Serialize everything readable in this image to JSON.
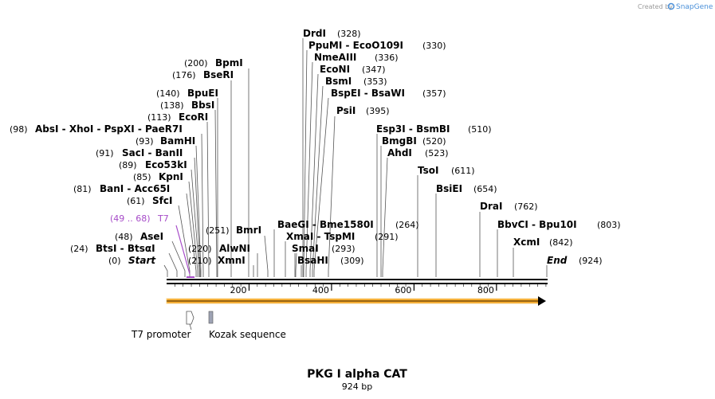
{
  "credit": {
    "prefix": "Created by",
    "brand": "SnapGene"
  },
  "sequence": {
    "name": "PKG I alpha CAT",
    "length_label": "924 bp",
    "length": 924
  },
  "axis": {
    "ticks": [
      200,
      400,
      600,
      800
    ]
  },
  "sites": [
    {
      "pos": "(328)",
      "label": "DrdI",
      "bp": 328
    },
    {
      "pos": "(330)",
      "label": "PpuMI  - EcoO109I",
      "bp": 330
    },
    {
      "pos": "(336)",
      "label": "NmeAIII",
      "bp": 336
    },
    {
      "pos": "(347)",
      "label": "EcoNI",
      "bp": 347
    },
    {
      "pos": "(353)",
      "label": "BsmI",
      "bp": 353
    },
    {
      "pos": "(357)",
      "label": "BspEI  - BsaWI",
      "bp": 357
    },
    {
      "pos": "(395)",
      "label": "PsiI",
      "bp": 395
    },
    {
      "pos": "(200)",
      "label": "BpmI",
      "bp": 200
    },
    {
      "pos": "(176)",
      "label": "BseRI",
      "bp": 176
    },
    {
      "pos": "(140)",
      "label": "BpuEI",
      "bp": 140
    },
    {
      "pos": "(138)",
      "label": "BbsI",
      "bp": 138
    },
    {
      "pos": "(113)",
      "label": "EcoRI",
      "bp": 113
    },
    {
      "pos": "(98)",
      "label": "AbsI  - XhoI  - PspXI  - PaeR7I",
      "bp": 98
    },
    {
      "pos": "(93)",
      "label": "BamHI",
      "bp": 93
    },
    {
      "pos": "(91)",
      "label": "SacI  - BanII",
      "bp": 91
    },
    {
      "pos": "(89)",
      "label": "Eco53kI",
      "bp": 89
    },
    {
      "pos": "(85)",
      "label": "KpnI",
      "bp": 85
    },
    {
      "pos": "(81)",
      "label": "BanI  - Acc65I",
      "bp": 81
    },
    {
      "pos": "(61)",
      "label": "SfcI",
      "bp": 61
    },
    {
      "pos": "(48)",
      "label": "AseI",
      "bp": 48
    },
    {
      "pos": "(24)",
      "label": "BtsI  - BtsαI",
      "bp": 24
    },
    {
      "pos": "(0)",
      "label": "Start",
      "bp": 0
    },
    {
      "pos": "(220)",
      "label": "AlwNI",
      "bp": 220
    },
    {
      "pos": "(210)",
      "label": "XmnI",
      "bp": 210
    },
    {
      "pos": "(251)",
      "label": "BmrI",
      "bp": 251
    },
    {
      "pos": "(264)",
      "label": "BaeGI  - Bme1580I",
      "bp": 264
    },
    {
      "pos": "(291)",
      "label": "XmaI  - TspMI",
      "bp": 291
    },
    {
      "pos": "(293)",
      "label": "SmaI",
      "bp": 293
    },
    {
      "pos": "(309)",
      "label": "BsaHI",
      "bp": 309
    },
    {
      "pos": "(510)",
      "label": "Esp3I  - BsmBI",
      "bp": 510
    },
    {
      "pos": "(520)",
      "label": "BmgBI",
      "bp": 520
    },
    {
      "pos": "(523)",
      "label": "AhdI",
      "bp": 523
    },
    {
      "pos": "(611)",
      "label": "TsoI",
      "bp": 611
    },
    {
      "pos": "(654)",
      "label": "BsiEI",
      "bp": 654
    },
    {
      "pos": "(762)",
      "label": "DraI",
      "bp": 762
    },
    {
      "pos": "(803)",
      "label": "BbvCI  - Bpu10I",
      "bp": 803
    },
    {
      "pos": "(842)",
      "label": "XcmI",
      "bp": 842
    },
    {
      "pos": "(924)",
      "label": "End",
      "bp": 924
    }
  ],
  "primer": {
    "range": "(49 .. 68)",
    "label": "T7",
    "start": 49,
    "end": 68
  },
  "features": [
    {
      "label": "T7 promoter",
      "type": "promoter"
    },
    {
      "label": "Kozak sequence",
      "type": "misc"
    }
  ],
  "orf": {
    "color": "#f5a623",
    "start": 0,
    "end": 924
  },
  "colors": {
    "primer": "#a64bc8",
    "orf": "#f5a623",
    "brand": "#4a90d9",
    "kozak": "#9ea3b4"
  }
}
